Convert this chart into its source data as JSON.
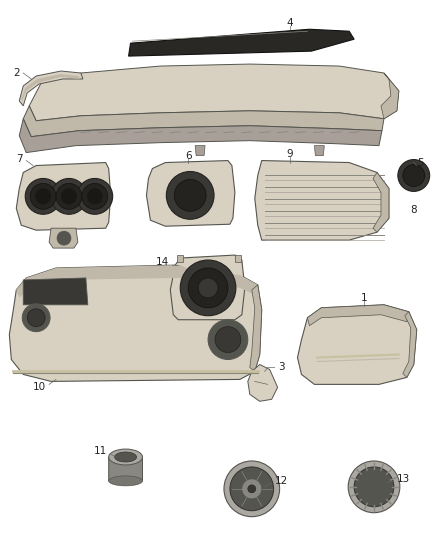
{
  "background_color": "#ffffff",
  "fig_width": 4.38,
  "fig_height": 5.33,
  "dpi": 100,
  "fill_light": "#d8d0c0",
  "fill_mid": "#c0b8a8",
  "fill_dark": "#a8a098",
  "fill_darker": "#888880",
  "edge_color": "#555550",
  "line_color": "#666660",
  "text_color": "#222222",
  "shadow_color": "#b0a898",
  "black": "#1a1a1a",
  "white": "#f8f8f8",
  "label_fontsize": 7.5
}
